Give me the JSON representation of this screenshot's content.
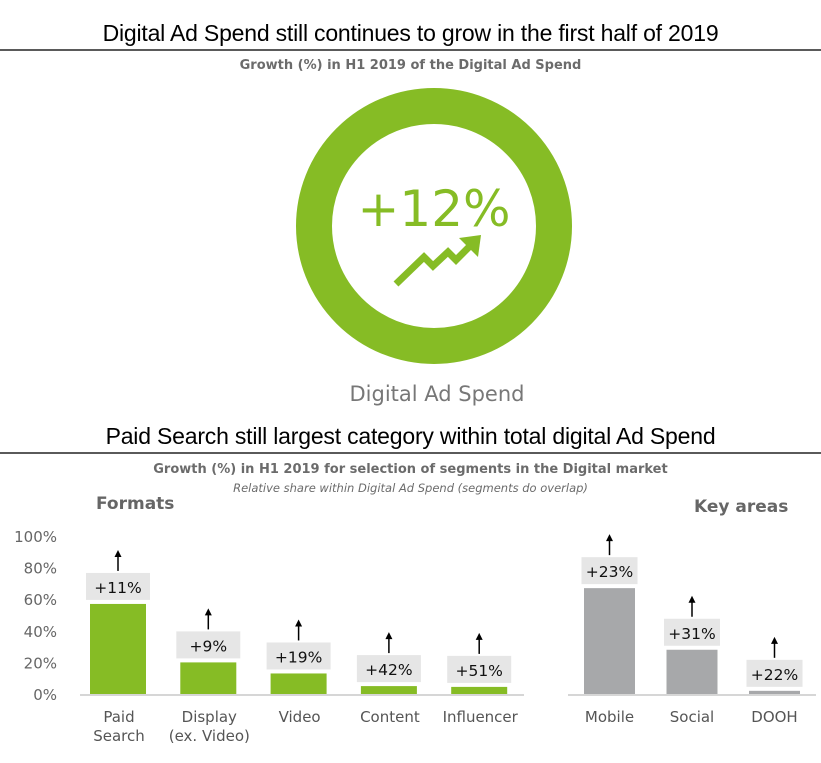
{
  "header": {
    "title": "Digital Ad Spend still continues to grow in the first half of 2019",
    "subtitle": "Growth (%) in H1 2019 of the Digital Ad Spend"
  },
  "highlight": {
    "value": "+12%",
    "label": "Digital Ad Spend",
    "icon": "trend-up-arrow-icon",
    "color": "#86bc25"
  },
  "section2": {
    "title": "Paid Search still largest category within total digital Ad Spend",
    "subtitle": "Growth (%) in H1 2019 for selection of segments in the Digital market",
    "note": "Relative share within Digital Ad Spend (segments do overlap)",
    "group_formats": "Formats",
    "group_key_areas": "Key areas"
  },
  "chart_data": [
    {
      "type": "pie",
      "title": "Growth (%) in H1 2019 of the Digital Ad Spend",
      "categories": [
        "Digital Ad Spend"
      ],
      "values": [
        12
      ],
      "value_label": "+12%",
      "style": "ring"
    },
    {
      "type": "bar",
      "title": "Growth (%) in H1 2019 for selection of segments in the Digital market",
      "subtitle": "Relative share within Digital Ad Spend (segments do overlap)",
      "ylabel": "",
      "xlabel": "",
      "ylim": [
        0,
        100
      ],
      "yticks": [
        "0%",
        "20%",
        "40%",
        "60%",
        "80%",
        "100%"
      ],
      "grid": false,
      "groups": [
        {
          "name": "Formats",
          "color": "#86bc25",
          "categories": [
            "Paid Search",
            "Display (ex. Video)",
            "Video",
            "Content",
            "Influencer"
          ],
          "category_lines": [
            [
              "Paid",
              "Search"
            ],
            [
              "Display",
              "(ex. Video)"
            ],
            [
              "Video"
            ],
            [
              "Content"
            ],
            [
              "Influencer"
            ]
          ],
          "share_values": [
            57,
            20,
            13,
            5,
            4.5
          ],
          "growth_labels": [
            "+11%",
            "+9%",
            "+19%",
            "+42%",
            "+51%"
          ]
        },
        {
          "name": "Key areas",
          "color": "#a7a8aa",
          "categories": [
            "Mobile",
            "Social",
            "DOOH"
          ],
          "category_lines": [
            [
              "Mobile"
            ],
            [
              "Social"
            ],
            [
              "DOOH"
            ]
          ],
          "share_values": [
            67,
            28,
            2
          ],
          "growth_labels": [
            "+23%",
            "+31%",
            "+22%"
          ]
        }
      ],
      "label_bg_color": "#e6e6e6",
      "arrow": "up-arrow-icon"
    }
  ]
}
